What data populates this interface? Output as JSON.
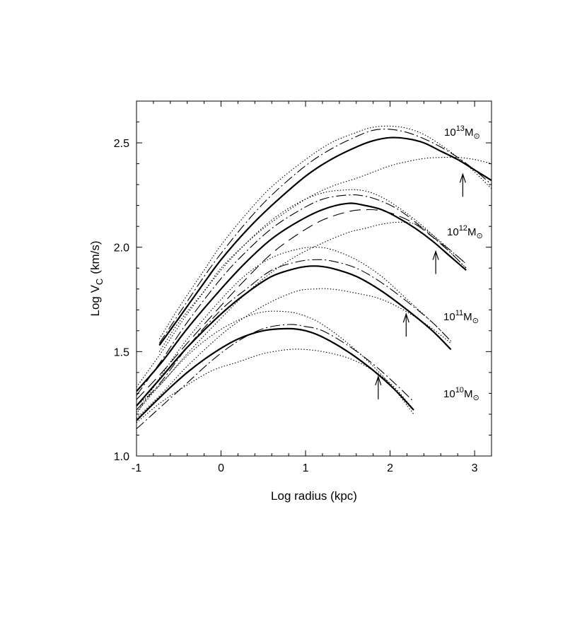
{
  "chart_data": {
    "type": "line",
    "xlabel": "Log radius (kpc)",
    "ylabel_main": "Log V",
    "ylabel_sub": "C",
    "ylabel_unit": "(km/s)",
    "xlim": [
      -1,
      3.2
    ],
    "ylim": [
      1.0,
      2.7
    ],
    "x_ticks": [
      -1,
      0,
      1,
      2,
      3
    ],
    "x_tick_labels": [
      "-1",
      "0",
      "1",
      "2",
      "3"
    ],
    "y_ticks": [
      1.0,
      1.5,
      2.0,
      2.5
    ],
    "y_tick_labels": [
      "1.0",
      "1.5",
      "2.0",
      "2.5"
    ],
    "grid": false,
    "mass_labels": [
      {
        "base": "10",
        "exp": "13",
        "unit": "M",
        "sun": "⊙"
      },
      {
        "base": "10",
        "exp": "12",
        "unit": "M",
        "sun": "⊙"
      },
      {
        "base": "10",
        "exp": "11",
        "unit": "M",
        "sun": "⊙"
      },
      {
        "base": "10",
        "exp": "10",
        "unit": "M",
        "sun": "⊙"
      }
    ],
    "arrows": [
      {
        "x": 2.86,
        "y_tip": 2.35
      },
      {
        "x": 2.54,
        "y_tip": 1.98
      },
      {
        "x": 2.19,
        "y_tip": 1.68
      },
      {
        "x": 1.86,
        "y_tip": 1.38
      }
    ],
    "groups": [
      {
        "mass": "10^13",
        "series": [
          {
            "style": "solid",
            "x": [
              -0.73,
              -0.5,
              -0.2,
              0.0,
              0.3,
              0.6,
              1.0,
              1.3,
              1.6,
              1.8,
              2.0,
              2.2,
              2.4,
              2.6,
              2.8,
              3.0,
              3.2
            ],
            "y": [
              1.53,
              1.66,
              1.83,
              1.94,
              2.08,
              2.2,
              2.34,
              2.42,
              2.48,
              2.51,
              2.525,
              2.52,
              2.5,
              2.46,
              2.42,
              2.37,
              2.32
            ]
          },
          {
            "style": "dashdot",
            "x": [
              -0.73,
              -0.5,
              -0.2,
              0.0,
              0.3,
              0.6,
              1.0,
              1.3,
              1.6,
              1.8,
              2.0,
              2.2,
              2.4,
              2.6,
              2.8,
              3.0,
              3.2
            ],
            "y": [
              1.54,
              1.68,
              1.86,
              1.97,
              2.12,
              2.25,
              2.39,
              2.47,
              2.53,
              2.56,
              2.565,
              2.55,
              2.52,
              2.48,
              2.43,
              2.37,
              2.3
            ]
          },
          {
            "style": "dotted",
            "x": [
              -0.73,
              -0.5,
              -0.2,
              0.0,
              0.3,
              0.6,
              1.0,
              1.3,
              1.6,
              1.8,
              2.0,
              2.2,
              2.4,
              2.6,
              2.8,
              3.0,
              3.2
            ],
            "y": [
              1.56,
              1.71,
              1.89,
              2.01,
              2.16,
              2.29,
              2.42,
              2.5,
              2.55,
              2.575,
              2.58,
              2.57,
              2.54,
              2.49,
              2.43,
              2.36,
              2.28
            ]
          },
          {
            "style": "dotted",
            "x": [
              -0.73,
              -0.5,
              -0.2,
              0.0,
              0.3,
              0.6,
              1.0,
              1.3,
              1.6,
              1.8,
              2.0,
              2.2,
              2.4,
              2.6,
              2.8,
              3.0,
              3.2
            ],
            "y": [
              1.5,
              1.64,
              1.79,
              1.9,
              2.02,
              2.12,
              2.23,
              2.29,
              2.33,
              2.36,
              2.39,
              2.41,
              2.425,
              2.43,
              2.43,
              2.42,
              2.4
            ]
          }
        ]
      },
      {
        "mass": "10^12",
        "series": [
          {
            "style": "solid",
            "x": [
              -1.0,
              -0.7,
              -0.4,
              0.0,
              0.3,
              0.6,
              0.9,
              1.2,
              1.5,
              1.7,
              1.9,
              2.1,
              2.3,
              2.5,
              2.7,
              2.9
            ],
            "y": [
              1.31,
              1.45,
              1.61,
              1.8,
              1.93,
              2.04,
              2.12,
              2.18,
              2.21,
              2.2,
              2.18,
              2.14,
              2.09,
              2.03,
              1.96,
              1.89
            ]
          },
          {
            "style": "dashdot",
            "x": [
              -1.0,
              -0.7,
              -0.4,
              0.0,
              0.3,
              0.6,
              0.9,
              1.2,
              1.5,
              1.7,
              1.9,
              2.1,
              2.3,
              2.5,
              2.7,
              2.9
            ],
            "y": [
              1.29,
              1.46,
              1.64,
              1.85,
              1.98,
              2.09,
              2.17,
              2.23,
              2.25,
              2.245,
              2.22,
              2.18,
              2.12,
              2.05,
              1.98,
              1.9
            ]
          },
          {
            "style": "dashed",
            "x": [
              -1.0,
              -0.7,
              -0.4,
              0.0,
              0.3,
              0.6,
              0.9,
              1.2,
              1.5,
              1.7,
              1.9,
              2.1,
              2.3,
              2.5,
              2.7,
              2.9
            ],
            "y": [
              1.27,
              1.4,
              1.54,
              1.72,
              1.85,
              1.97,
              2.06,
              2.13,
              2.17,
              2.18,
              2.175,
              2.15,
              2.11,
              2.05,
              1.99,
              1.92
            ]
          },
          {
            "style": "dotted",
            "x": [
              -1.0,
              -0.7,
              -0.4,
              0.0,
              0.3,
              0.6,
              0.9,
              1.2,
              1.5,
              1.7,
              1.9,
              2.1,
              2.3,
              2.5,
              2.7,
              2.9
            ],
            "y": [
              1.33,
              1.5,
              1.68,
              1.89,
              2.02,
              2.13,
              2.21,
              2.26,
              2.275,
              2.27,
              2.24,
              2.19,
              2.13,
              2.06,
              1.98,
              1.9
            ]
          },
          {
            "style": "dotted",
            "x": [
              -1.0,
              -0.7,
              -0.4,
              0.0,
              0.3,
              0.6,
              0.9,
              1.2,
              1.5,
              1.7,
              1.9,
              2.1,
              2.3,
              2.5,
              2.7,
              2.9
            ],
            "y": [
              1.24,
              1.35,
              1.49,
              1.66,
              1.78,
              1.88,
              1.96,
              2.02,
              2.07,
              2.09,
              2.11,
              2.12,
              2.11,
              2.06,
              1.99,
              1.92
            ]
          }
        ]
      },
      {
        "mass": "10^11",
        "series": [
          {
            "style": "solid",
            "x": [
              -1.0,
              -0.7,
              -0.4,
              0.0,
              0.3,
              0.6,
              0.9,
              1.1,
              1.3,
              1.6,
              1.9,
              2.2,
              2.5,
              2.72
            ],
            "y": [
              1.24,
              1.38,
              1.52,
              1.68,
              1.78,
              1.86,
              1.9,
              1.91,
              1.9,
              1.86,
              1.79,
              1.7,
              1.6,
              1.51
            ]
          },
          {
            "style": "dashdot",
            "x": [
              -1.0,
              -0.7,
              -0.4,
              0.0,
              0.3,
              0.6,
              0.9,
              1.1,
              1.3,
              1.6,
              1.9,
              2.2,
              2.5,
              2.72
            ],
            "y": [
              1.22,
              1.36,
              1.52,
              1.7,
              1.8,
              1.89,
              1.93,
              1.94,
              1.935,
              1.9,
              1.83,
              1.74,
              1.64,
              1.55
            ]
          },
          {
            "style": "dotted",
            "x": [
              -1.0,
              -0.7,
              -0.4,
              0.0,
              0.3,
              0.6,
              0.9,
              1.1,
              1.3,
              1.6,
              1.9,
              2.2,
              2.5,
              2.72
            ],
            "y": [
              1.2,
              1.39,
              1.56,
              1.75,
              1.87,
              1.95,
              1.99,
              2.0,
              1.99,
              1.94,
              1.86,
              1.75,
              1.64,
              1.55
            ]
          },
          {
            "style": "dotted",
            "x": [
              -1.0,
              -0.7,
              -0.4,
              0.0,
              0.3,
              0.6,
              0.9,
              1.1,
              1.3,
              1.6,
              1.9,
              2.2,
              2.5,
              2.72
            ],
            "y": [
              1.18,
              1.3,
              1.43,
              1.58,
              1.67,
              1.74,
              1.79,
              1.8,
              1.8,
              1.78,
              1.75,
              1.69,
              1.61,
              1.54
            ]
          }
        ]
      },
      {
        "mass": "10^10",
        "series": [
          {
            "style": "solid",
            "x": [
              -1.0,
              -0.7,
              -0.4,
              -0.1,
              0.2,
              0.5,
              0.8,
              1.0,
              1.2,
              1.5,
              1.8,
              2.05,
              2.28
            ],
            "y": [
              1.17,
              1.29,
              1.4,
              1.49,
              1.56,
              1.6,
              1.61,
              1.6,
              1.57,
              1.5,
              1.41,
              1.32,
              1.22
            ]
          },
          {
            "style": "dashdot",
            "x": [
              -1.0,
              -0.7,
              -0.4,
              -0.1,
              0.2,
              0.5,
              0.8,
              1.0,
              1.2,
              1.5,
              1.8,
              2.05,
              2.28
            ],
            "y": [
              1.13,
              1.24,
              1.35,
              1.46,
              1.55,
              1.61,
              1.63,
              1.62,
              1.6,
              1.53,
              1.44,
              1.35,
              1.26
            ]
          },
          {
            "style": "dotted",
            "x": [
              -1.0,
              -0.7,
              -0.4,
              -0.1,
              0.2,
              0.5,
              0.8,
              1.0,
              1.2,
              1.5,
              1.8,
              2.05,
              2.28
            ],
            "y": [
              1.21,
              1.35,
              1.48,
              1.58,
              1.65,
              1.69,
              1.69,
              1.67,
              1.63,
              1.54,
              1.43,
              1.32,
              1.2
            ]
          },
          {
            "style": "dotted",
            "x": [
              -1.0,
              -0.7,
              -0.4,
              -0.1,
              0.2,
              0.5,
              0.8,
              1.0,
              1.2,
              1.5,
              1.8,
              2.05,
              2.28
            ],
            "y": [
              1.16,
              1.26,
              1.34,
              1.41,
              1.45,
              1.49,
              1.51,
              1.51,
              1.5,
              1.47,
              1.41,
              1.33,
              1.22
            ]
          }
        ]
      }
    ]
  }
}
